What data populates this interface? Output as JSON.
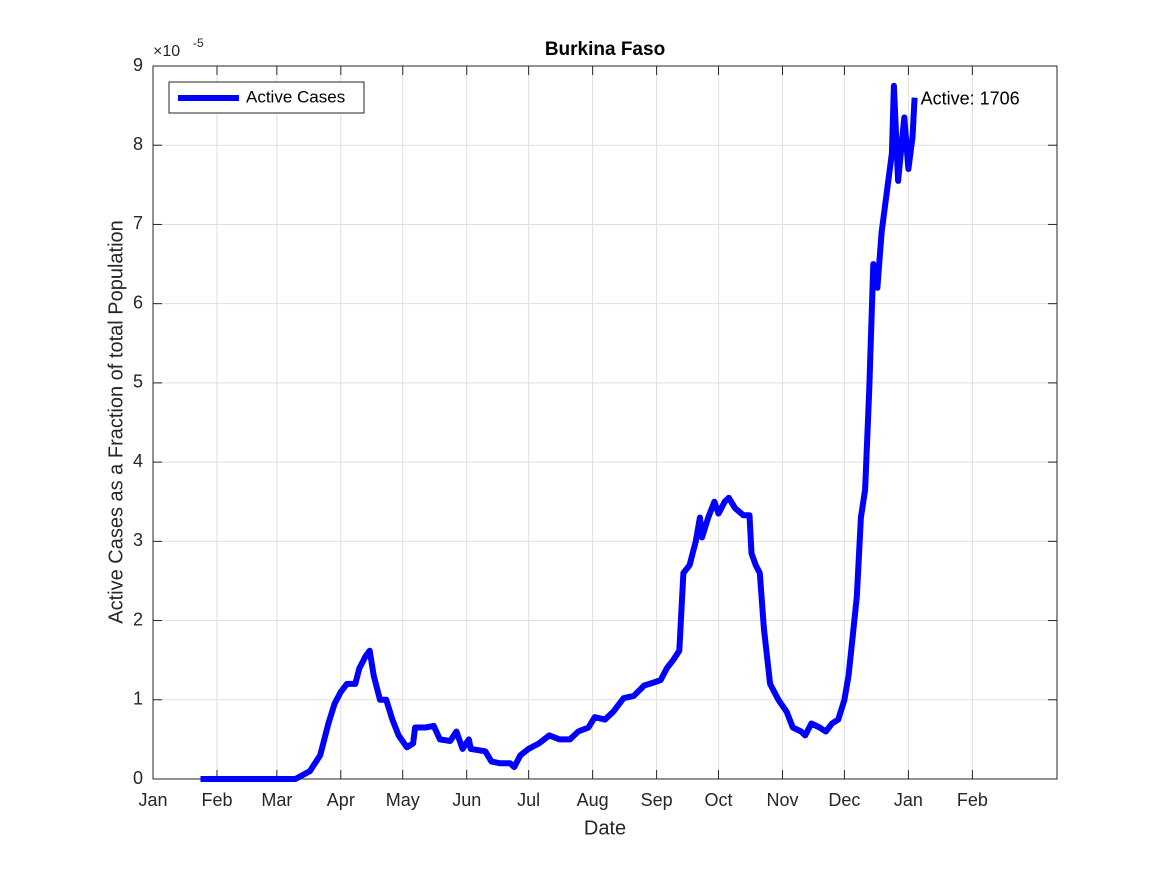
{
  "chart_data": {
    "type": "line",
    "title": "Burkina Faso",
    "xlabel": "Date",
    "ylabel": "Active Cases as a Fraction of total Population",
    "y_multiplier": "×10",
    "y_multiplier_exponent": "-5",
    "annotation": "Active: 1706",
    "grid": true,
    "legend": "upper-left",
    "xlim": [
      0,
      438
    ],
    "xticks": [
      {
        "value": 0,
        "label": "Jan"
      },
      {
        "value": 31,
        "label": "Feb"
      },
      {
        "value": 60,
        "label": "Mar"
      },
      {
        "value": 91,
        "label": "Apr"
      },
      {
        "value": 121,
        "label": "May"
      },
      {
        "value": 152,
        "label": "Jun"
      },
      {
        "value": 182,
        "label": "Jul"
      },
      {
        "value": 213,
        "label": "Aug"
      },
      {
        "value": 244,
        "label": "Sep"
      },
      {
        "value": 274,
        "label": "Oct"
      },
      {
        "value": 305,
        "label": "Nov"
      },
      {
        "value": 335,
        "label": "Dec"
      },
      {
        "value": 366,
        "label": "Jan"
      },
      {
        "value": 397,
        "label": "Feb"
      }
    ],
    "ylim": [
      0,
      9
    ],
    "yticks": [
      0,
      1,
      2,
      3,
      4,
      5,
      6,
      7,
      8,
      9
    ],
    "x": [
      23,
      69,
      76,
      81,
      85,
      88,
      91,
      94,
      98,
      100,
      103,
      105,
      107,
      110,
      113,
      116,
      119,
      123,
      126,
      127,
      132,
      136,
      139,
      144,
      147,
      150,
      153,
      154,
      161,
      164,
      168,
      173,
      175,
      178,
      182,
      187,
      192,
      197,
      202,
      206,
      211,
      214,
      219,
      223,
      228,
      233,
      238,
      243,
      246,
      249,
      252,
      255,
      257,
      260,
      263,
      265,
      266,
      269,
      272,
      274,
      277,
      279,
      282,
      286,
      289,
      290,
      292,
      294,
      296,
      299,
      303,
      307,
      310,
      314,
      316,
      319,
      323,
      326,
      329,
      332,
      335,
      337,
      339,
      341,
      343,
      345,
      347,
      349,
      351,
      353,
      355,
      358,
      359,
      361,
      364,
      366,
      368,
      369
    ],
    "series": [
      {
        "name": "Active Cases",
        "color": "#0000ff",
        "values": [
          0,
          0,
          0.1,
          0.3,
          0.7,
          0.95,
          1.1,
          1.2,
          1.2,
          1.4,
          1.55,
          1.62,
          1.3,
          1.0,
          1.0,
          0.75,
          0.55,
          0.4,
          0.45,
          0.65,
          0.65,
          0.67,
          0.5,
          0.48,
          0.6,
          0.38,
          0.5,
          0.38,
          0.35,
          0.22,
          0.2,
          0.2,
          0.15,
          0.3,
          0.38,
          0.45,
          0.55,
          0.5,
          0.5,
          0.6,
          0.65,
          0.78,
          0.75,
          0.85,
          1.02,
          1.05,
          1.18,
          1.22,
          1.25,
          1.4,
          1.5,
          1.62,
          2.6,
          2.7,
          3.0,
          3.3,
          3.05,
          3.3,
          3.5,
          3.35,
          3.5,
          3.55,
          3.42,
          3.33,
          3.33,
          2.85,
          2.7,
          2.6,
          1.9,
          1.2,
          1.0,
          0.85,
          0.65,
          0.6,
          0.55,
          0.7,
          0.65,
          0.6,
          0.7,
          0.75,
          1.0,
          1.3,
          1.8,
          2.3,
          3.3,
          3.65,
          4.9,
          6.5,
          6.2,
          6.9,
          7.3,
          7.9,
          8.75,
          7.55,
          8.35,
          7.7,
          8.1,
          8.6
        ]
      }
    ]
  }
}
